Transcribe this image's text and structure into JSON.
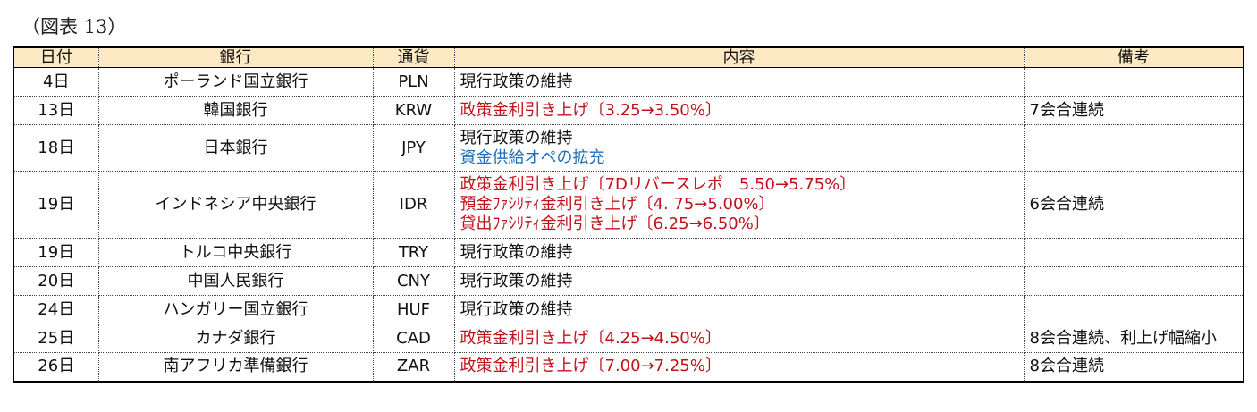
{
  "figure_label": "（図表 13）",
  "colors": {
    "header_bg": "#fde9c4",
    "text_black": "#111111",
    "text_red": "#c0121a",
    "text_blue": "#1f6fb8"
  },
  "table": {
    "headers": {
      "date": "日付",
      "bank": "銀行",
      "currency": "通貨",
      "content": "内容",
      "note": "備考"
    },
    "rows": [
      {
        "date": "4日",
        "bank": "ポーランド国立銀行",
        "currency": "PLN",
        "content": [
          {
            "text": "現行政策の維持",
            "color": "black"
          }
        ],
        "note": ""
      },
      {
        "date": "13日",
        "bank": "韓国銀行",
        "currency": "KRW",
        "content": [
          {
            "text": "政策金利引き上げ〔3.25→3.50%〕",
            "color": "red"
          }
        ],
        "note": "7会合連続"
      },
      {
        "date": "18日",
        "bank": "日本銀行",
        "currency": "JPY",
        "content": [
          {
            "text": "現行政策の維持",
            "color": "black"
          },
          {
            "text": "資金供給オペの拡充",
            "color": "blue"
          }
        ],
        "note": ""
      },
      {
        "date": "19日",
        "bank": "インドネシア中央銀行",
        "currency": "IDR",
        "content": [
          {
            "text": "政策金利引き上げ〔7Dリバースレポ　5.50→5.75%〕",
            "color": "red"
          },
          {
            "text": "預金ﾌｧｼﾘﾃｨ金利引き上げ〔4. 75→5.00%〕",
            "color": "red"
          },
          {
            "text": "貸出ﾌｧｼﾘﾃｨ金利引き上げ〔6.25→6.50%〕",
            "color": "red"
          }
        ],
        "note": "6会合連続"
      },
      {
        "date": "19日",
        "bank": "トルコ中央銀行",
        "currency": "TRY",
        "content": [
          {
            "text": "現行政策の維持",
            "color": "black"
          }
        ],
        "note": ""
      },
      {
        "date": "20日",
        "bank": "中国人民銀行",
        "currency": "CNY",
        "content": [
          {
            "text": "現行政策の維持",
            "color": "black"
          }
        ],
        "note": ""
      },
      {
        "date": "24日",
        "bank": "ハンガリー国立銀行",
        "currency": "HUF",
        "content": [
          {
            "text": "現行政策の維持",
            "color": "black"
          }
        ],
        "note": ""
      },
      {
        "date": "25日",
        "bank": "カナダ銀行",
        "currency": "CAD",
        "content": [
          {
            "text": "政策金利引き上げ〔4.25→4.50%〕",
            "color": "red"
          }
        ],
        "note": "8会合連続、利上げ幅縮小"
      },
      {
        "date": "26日",
        "bank": "南アフリカ準備銀行",
        "currency": "ZAR",
        "content": [
          {
            "text": "政策金利引き上げ〔7.00→7.25%〕",
            "color": "red"
          }
        ],
        "note": "8会合連続"
      }
    ]
  }
}
